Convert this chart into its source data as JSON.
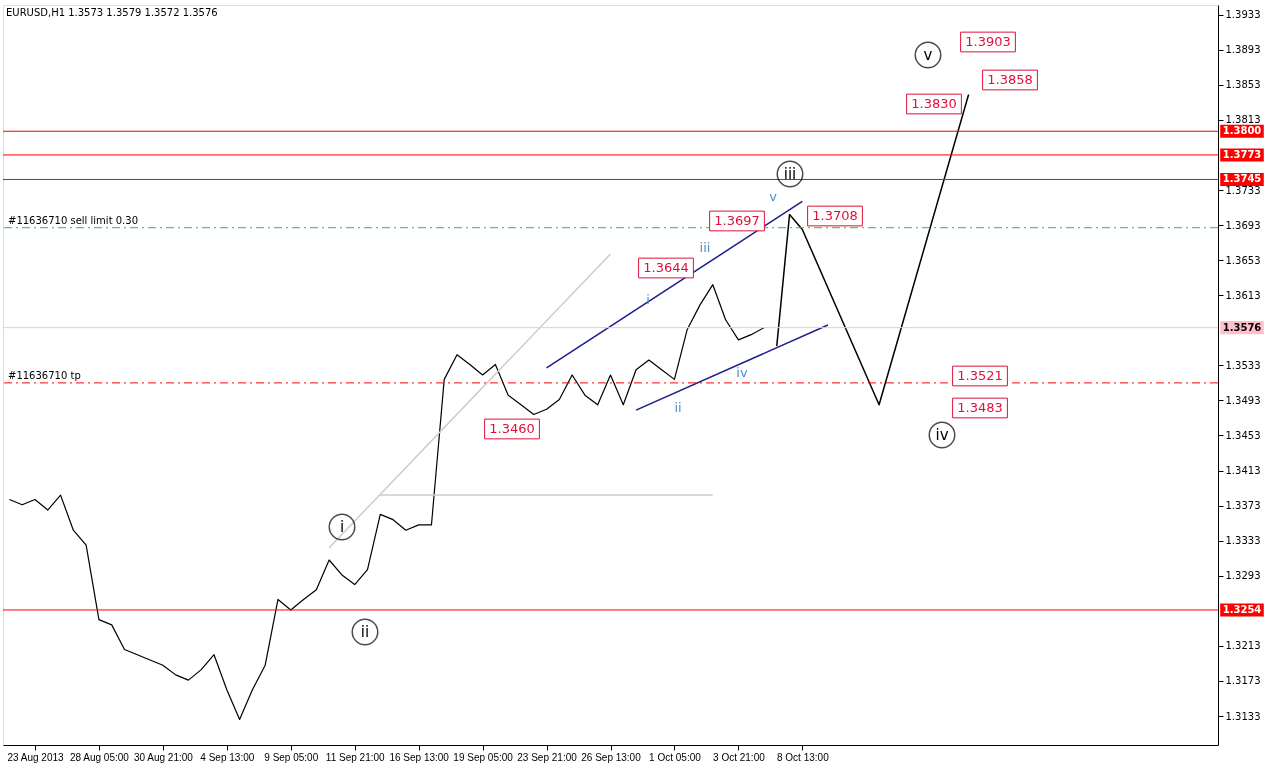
{
  "chart_data": {
    "type": "line",
    "title": "EURUSD,H1  1.3573 1.3579 1.3572 1.3576",
    "categories": [
      null,
      null,
      "23 Aug 2013",
      null,
      null,
      null,
      null,
      "28 Aug 05:00",
      null,
      null,
      null,
      null,
      "30 Aug 21:00",
      null,
      null,
      null,
      null,
      "4 Sep 13:00",
      null,
      null,
      null,
      null,
      "9 Sep 05:00",
      null,
      null,
      null,
      null,
      "11 Sep 21:00",
      null,
      null,
      null,
      null,
      "16 Sep 13:00",
      null,
      null,
      null,
      null,
      "19 Sep 05:00",
      null,
      null,
      null,
      null,
      "23 Sep 21:00",
      null,
      null,
      null,
      null,
      "26 Sep 13:00",
      null,
      null,
      null,
      null,
      "1 Oct 05:00",
      null,
      null,
      null,
      null,
      "3 Oct 21:00",
      null,
      null,
      null,
      null,
      "8 Oct 13:00",
      null,
      null,
      null,
      null,
      null,
      null,
      null,
      null,
      null,
      null,
      null,
      null,
      null,
      null,
      null,
      null,
      null,
      null,
      null,
      null,
      null,
      null,
      null,
      null,
      null,
      null,
      null,
      null,
      null,
      null,
      null,
      null
    ],
    "series": [
      {
        "color": "#000000",
        "values": [
          1.338,
          1.3374,
          1.338,
          1.3368,
          1.3385,
          1.3345,
          1.3328,
          1.3243,
          1.3237,
          1.3209,
          1.3203,
          1.3197,
          1.3191,
          1.318,
          1.3174,
          1.3186,
          1.3203,
          1.3163,
          1.3129,
          1.3163,
          1.3191,
          1.3266,
          1.3254,
          1.3266,
          1.3277,
          1.3311,
          1.3294,
          1.3283,
          1.33,
          1.3363,
          1.3357,
          1.3345,
          1.3351,
          1.3351,
          1.3517,
          1.3545,
          1.3534,
          1.3522,
          1.3534,
          1.3499,
          1.3488,
          1.3477,
          1.3483,
          1.3494,
          1.3522,
          1.3499,
          1.3488,
          1.3522,
          1.3488,
          1.3528,
          1.3539,
          1.3528,
          1.3517,
          1.3574,
          1.3602,
          1.3625,
          1.3585,
          1.3562,
          1.3568,
          1.3576,
          null,
          null,
          null,
          null,
          null,
          null,
          null,
          null,
          null,
          null,
          null,
          null,
          null,
          null,
          null,
          null,
          null,
          null,
          null,
          null,
          null,
          null,
          null,
          null,
          null,
          null,
          null,
          null,
          null,
          null,
          null,
          null,
          null,
          null,
          null
        ]
      },
      {
        "color": "#cccccc",
        "values": [
          null,
          null,
          null,
          null,
          null,
          null,
          null,
          null,
          null,
          null,
          null,
          null,
          null,
          null,
          null,
          null,
          null,
          null,
          null,
          null,
          null,
          null,
          null,
          null,
          null,
          1.3325,
          null,
          null,
          null,
          null,
          null,
          null,
          null,
          null,
          null,
          null,
          null,
          null,
          null,
          null,
          null,
          null,
          null,
          null,
          null,
          null,
          null,
          1.366,
          null,
          null,
          null,
          null,
          null,
          null,
          null,
          null,
          null,
          null,
          null,
          null,
          null,
          null,
          null,
          null,
          null,
          null,
          null,
          null,
          null,
          null,
          null,
          null,
          null,
          null,
          null,
          null,
          null,
          null,
          null,
          null,
          null,
          null,
          null,
          null,
          null,
          null,
          null,
          null,
          null,
          null,
          null,
          null,
          null,
          null,
          null
        ]
      },
      {
        "color": "#cccccc",
        "values": [
          null,
          null,
          null,
          null,
          null,
          null,
          null,
          null,
          null,
          null,
          null,
          null,
          null,
          null,
          null,
          null,
          null,
          null,
          null,
          null,
          null,
          null,
          null,
          null,
          null,
          null,
          null,
          null,
          null,
          1.3385,
          null,
          null,
          null,
          null,
          null,
          null,
          null,
          null,
          null,
          null,
          null,
          null,
          null,
          null,
          null,
          null,
          null,
          null,
          null,
          null,
          null,
          null,
          null,
          null,
          null,
          1.3385,
          null,
          null,
          null,
          null,
          null,
          null,
          null,
          null,
          null,
          null,
          null,
          null,
          null,
          null,
          null,
          null,
          null,
          null,
          null,
          null,
          null,
          null,
          null,
          null,
          null,
          null,
          null,
          null,
          null,
          null,
          null,
          null,
          null,
          null,
          null,
          null,
          null,
          null,
          null
        ]
      },
      {
        "color": "#1c1c8c",
        "values": [
          null,
          null,
          null,
          null,
          null,
          null,
          null,
          null,
          null,
          null,
          null,
          null,
          null,
          null,
          null,
          null,
          null,
          null,
          null,
          null,
          null,
          null,
          null,
          null,
          null,
          null,
          null,
          null,
          null,
          null,
          null,
          null,
          null,
          null,
          null,
          null,
          null,
          null,
          null,
          null,
          null,
          null,
          1.353,
          null,
          null,
          null,
          null,
          null,
          null,
          null,
          null,
          null,
          null,
          null,
          null,
          null,
          null,
          null,
          null,
          null,
          null,
          null,
          1.372,
          null,
          null,
          null,
          null,
          null,
          null,
          null,
          null,
          null,
          null,
          null,
          null,
          null,
          null,
          null,
          null,
          null,
          null,
          null,
          null,
          null,
          null,
          null,
          null,
          null,
          null,
          null,
          null,
          null,
          null,
          null,
          null
        ]
      },
      {
        "color": "#1c1c8c",
        "values": [
          null,
          null,
          null,
          null,
          null,
          null,
          null,
          null,
          null,
          null,
          null,
          null,
          null,
          null,
          null,
          null,
          null,
          null,
          null,
          null,
          null,
          null,
          null,
          null,
          null,
          null,
          null,
          null,
          null,
          null,
          null,
          null,
          null,
          null,
          null,
          null,
          null,
          null,
          null,
          null,
          null,
          null,
          null,
          null,
          null,
          null,
          null,
          null,
          null,
          1.3482,
          null,
          null,
          null,
          null,
          null,
          null,
          null,
          null,
          null,
          null,
          null,
          null,
          null,
          null,
          1.3579,
          null,
          null,
          null,
          null,
          null,
          null,
          null,
          null,
          null,
          null,
          null,
          null,
          null,
          null,
          null,
          null,
          null,
          null,
          null,
          null,
          null,
          null,
          null,
          null,
          null,
          null,
          null,
          null,
          null,
          null
        ]
      },
      {
        "color": "#000000",
        "values": [
          null,
          null,
          null,
          null,
          null,
          null,
          null,
          null,
          null,
          null,
          null,
          null,
          null,
          null,
          null,
          null,
          null,
          null,
          null,
          null,
          null,
          null,
          null,
          null,
          null,
          null,
          null,
          null,
          null,
          null,
          null,
          null,
          null,
          null,
          null,
          null,
          null,
          null,
          null,
          null,
          null,
          null,
          null,
          null,
          null,
          null,
          null,
          null,
          null,
          null,
          null,
          null,
          null,
          null,
          null,
          null,
          null,
          null,
          null,
          null,
          1.3555,
          1.3705,
          1.3688,
          null,
          null,
          null,
          null,
          null,
          1.3488,
          null,
          null,
          null,
          null,
          null,
          null,
          1.3842,
          null,
          null,
          null,
          null,
          null,
          null,
          null,
          null,
          null,
          null,
          null,
          null,
          null,
          null,
          null,
          null,
          null,
          null,
          null
        ]
      }
    ],
    "ylim": [
      1.31,
      1.3944
    ],
    "yticks": [
      1.3133,
      1.3173,
      1.3213,
      1.3293,
      1.3333,
      1.3373,
      1.3413,
      1.3453,
      1.3493,
      1.3533,
      1.3613,
      1.3653,
      1.3693,
      1.3733,
      1.3813,
      1.3853,
      1.3893,
      1.3933
    ],
    "ref_lines": [
      {
        "axis": "y",
        "value": 1.38,
        "label": "1.3800",
        "color": "#ff0000",
        "line_style": "solid"
      },
      {
        "axis": "y",
        "value": 1.3773,
        "label": "1.3773",
        "color": "#ff0000",
        "line_style": "solid"
      },
      {
        "axis": "y",
        "value": 1.3745,
        "label": "1.3745",
        "color": "#ff0000",
        "line_style": "solid"
      },
      {
        "axis": "y",
        "value": 1.3254,
        "label": "1.3254",
        "color": "#ff0000",
        "line_style": "solid"
      },
      {
        "axis": "y",
        "value": 1.3576,
        "label": "1.3576",
        "color": "#ffc0cb",
        "line_style": "solid"
      },
      {
        "axis": "y",
        "value": 1.369,
        "label": "#11636710 sell limit 0.30",
        "color": "#22cc22",
        "line_style": "dashed"
      },
      {
        "axis": "y",
        "value": 1.3513,
        "label": "#11636710 tp",
        "color": "#ff0000",
        "line_style": "dashed"
      }
    ],
    "annotations": [
      "v",
      "iii",
      "i",
      "ii",
      "iv",
      "i",
      "ii",
      "iii",
      "iv",
      "v",
      "1.3903",
      "1.3858",
      "1.3830",
      "1.3708",
      "1.3697",
      "1.3644",
      "1.3460",
      "1.3521",
      "1.3483"
    ],
    "marker": "none",
    "line_style": "solid",
    "grid": false
  }
}
